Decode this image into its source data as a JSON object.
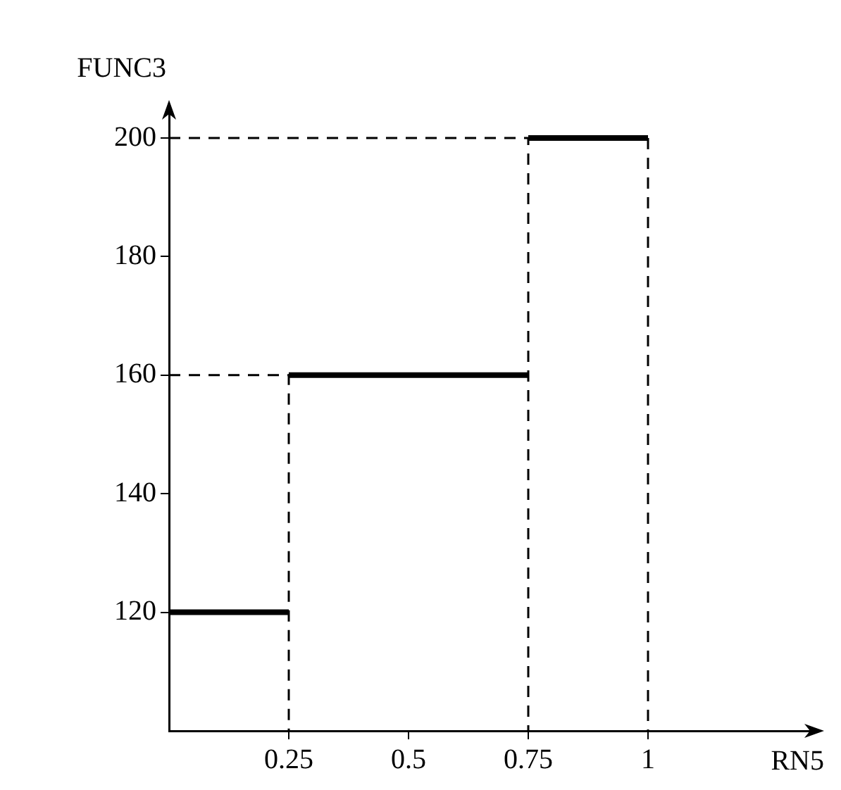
{
  "chart_data": {
    "type": "line",
    "xlabel": "RN5",
    "ylabel": "FUNC3",
    "xlim": [
      0,
      1.35
    ],
    "ylim": [
      100,
      205
    ],
    "xticks": [
      0.25,
      0.5,
      0.75,
      1
    ],
    "yticks": [
      120,
      140,
      160,
      180,
      200
    ],
    "grid": false,
    "legend": false,
    "marker": "none",
    "series": [
      {
        "color": "#000000",
        "line_style": "solid",
        "x": [
          0,
          0.25
        ],
        "values": [
          120,
          120
        ]
      },
      {
        "color": "#000000",
        "line_style": "solid",
        "x": [
          0.25,
          0.75
        ],
        "values": [
          160,
          160
        ]
      },
      {
        "color": "#000000",
        "line_style": "solid",
        "x": [
          0.75,
          1
        ],
        "values": [
          200,
          200
        ]
      },
      {
        "color": "#000000",
        "line_style": "dashed",
        "x": [
          0,
          0.25,
          0.25
        ],
        "values": [
          160,
          160,
          100
        ]
      },
      {
        "color": "#000000",
        "line_style": "dashed",
        "x": [
          0,
          0.75,
          0.75
        ],
        "values": [
          200,
          200,
          100
        ]
      },
      {
        "color": "#000000",
        "line_style": "dashed",
        "x": [
          1,
          1
        ],
        "values": [
          200,
          100
        ]
      }
    ]
  }
}
